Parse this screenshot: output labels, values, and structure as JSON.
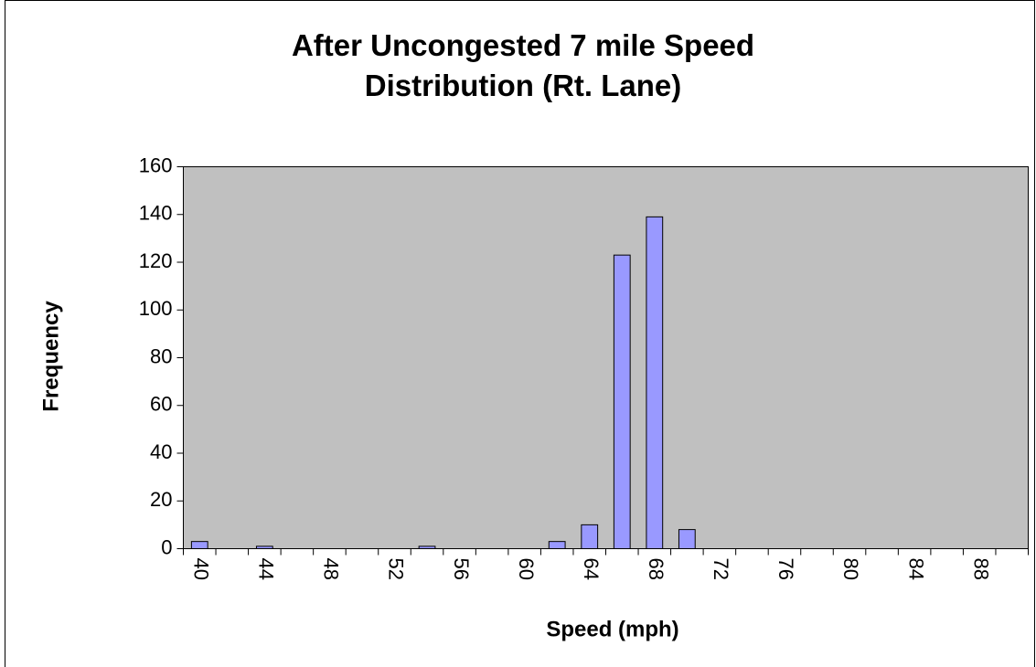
{
  "chart_data": {
    "type": "bar",
    "title": "After Uncongested 7 mile Speed Distribution (Rt. Lane)",
    "x_label": "Speed (mph)",
    "y_label": "Frequency",
    "categories": [
      40,
      null,
      44,
      null,
      48,
      null,
      52,
      null,
      56,
      null,
      60,
      null,
      64,
      null,
      68,
      null,
      72,
      null,
      76,
      null,
      80,
      null,
      84,
      null,
      88,
      null
    ],
    "values": [
      3,
      0,
      1,
      0,
      0,
      0,
      0,
      1,
      0,
      0,
      0,
      3,
      10,
      123,
      139,
      8,
      0,
      0,
      0,
      0,
      0,
      0,
      0,
      0,
      0,
      0
    ],
    "color": "#9999ff",
    "ylim": [
      0,
      160
    ],
    "yticks": [
      0,
      20,
      40,
      60,
      80,
      100,
      120,
      140,
      160
    ],
    "grid": false
  }
}
